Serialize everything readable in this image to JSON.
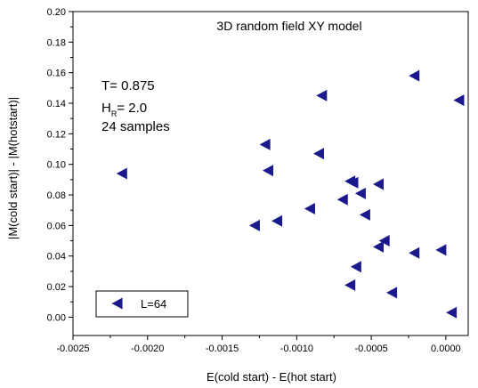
{
  "chart_data": {
    "type": "scatter",
    "title": "3D random field XY model",
    "xlabel": "E(cold start) - E(hot start)",
    "ylabel": "|M(cold start)| - |M(hotstart)|",
    "xlim": [
      -0.0025,
      0.00015
    ],
    "ylim": [
      -0.012,
      0.2
    ],
    "x_ticks": [
      "-0.0025",
      "-0.0020",
      "-0.0015",
      "-0.0010",
      "-0.0005",
      "0.0000"
    ],
    "x_tick_values": [
      -0.0025,
      -0.002,
      -0.0015,
      -0.001,
      -0.0005,
      0.0
    ],
    "y_ticks": [
      "0.00",
      "0.02",
      "0.04",
      "0.06",
      "0.08",
      "0.10",
      "0.12",
      "0.14",
      "0.16",
      "0.18",
      "0.20"
    ],
    "y_tick_values": [
      0.0,
      0.02,
      0.04,
      0.06,
      0.08,
      0.1,
      0.12,
      0.14,
      0.16,
      0.18,
      0.2
    ],
    "marker": "left-triangle",
    "marker_color": "#1a1a8c",
    "grid": false,
    "legend_position": "bottom-left",
    "series": [
      {
        "name": "L=64",
        "points": [
          {
            "x": -0.00217,
            "y": 0.094
          },
          {
            "x": -0.00128,
            "y": 0.06
          },
          {
            "x": -0.00121,
            "y": 0.113
          },
          {
            "x": -0.00119,
            "y": 0.096
          },
          {
            "x": -0.00113,
            "y": 0.063
          },
          {
            "x": -0.00091,
            "y": 0.071
          },
          {
            "x": -0.00085,
            "y": 0.107
          },
          {
            "x": -0.00083,
            "y": 0.145
          },
          {
            "x": -0.00069,
            "y": 0.077
          },
          {
            "x": -0.00064,
            "y": 0.089
          },
          {
            "x": -0.00062,
            "y": 0.088
          },
          {
            "x": -0.00064,
            "y": 0.021
          },
          {
            "x": -0.0006,
            "y": 0.033
          },
          {
            "x": -0.00057,
            "y": 0.081
          },
          {
            "x": -0.00054,
            "y": 0.067
          },
          {
            "x": -0.00045,
            "y": 0.087
          },
          {
            "x": -0.00045,
            "y": 0.046
          },
          {
            "x": -0.00041,
            "y": 0.05
          },
          {
            "x": -0.00036,
            "y": 0.016
          },
          {
            "x": -0.00021,
            "y": 0.042
          },
          {
            "x": -0.00021,
            "y": 0.158
          },
          {
            "x": -3e-05,
            "y": 0.044
          },
          {
            "x": 4e-05,
            "y": 0.003
          },
          {
            "x": 9e-05,
            "y": 0.142
          }
        ]
      }
    ],
    "annotations": {
      "temperature": "T= 0.875",
      "field_label": "H",
      "field_subscript": "R",
      "field_value": "= 2.0",
      "samples": "24 samples"
    },
    "legend": {
      "label": "L=64"
    }
  }
}
